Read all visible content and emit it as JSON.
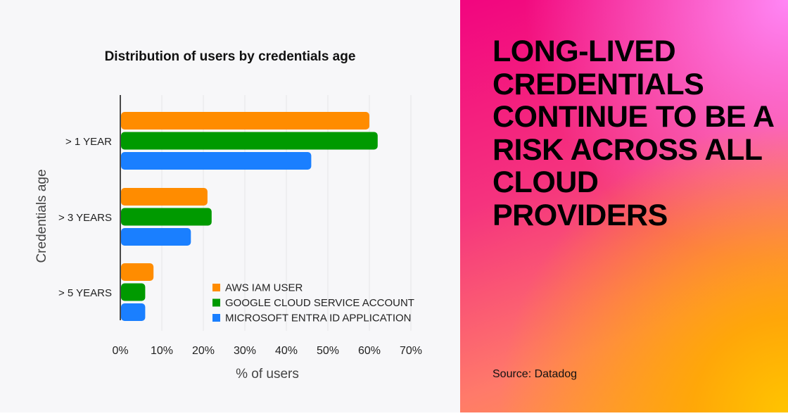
{
  "chart_data": {
    "type": "bar",
    "orientation": "horizontal",
    "title": "Distribution of users by credentials age",
    "xlabel": "% of users",
    "ylabel": "Credentials age",
    "categories": [
      "> 1 YEAR",
      "> 3 YEARS",
      "> 5 YEARS"
    ],
    "xlim": [
      0,
      70
    ],
    "xticks": [
      "0%",
      "10%",
      "20%",
      "30%",
      "40%",
      "50%",
      "60%",
      "70%"
    ],
    "grid": true,
    "legend_placement": "bottom-right",
    "series": [
      {
        "name": "AWS IAM USER",
        "color": "#ff8c00",
        "values": [
          60,
          21,
          8
        ]
      },
      {
        "name": "GOOGLE CLOUD SERVICE ACCOUNT",
        "color": "#009a00",
        "values": [
          62,
          22,
          6
        ]
      },
      {
        "name": "MICROSOFT ENTRA ID APPLICATION",
        "color": "#1a7fff",
        "values": [
          46,
          17,
          6
        ]
      }
    ]
  },
  "panel": {
    "headline": "LONG-LIVED CREDENTIALS CONTINUE TO BE A RISK ACROSS ALL CLOUD PROVIDERS",
    "source": "Source: Datadog"
  }
}
